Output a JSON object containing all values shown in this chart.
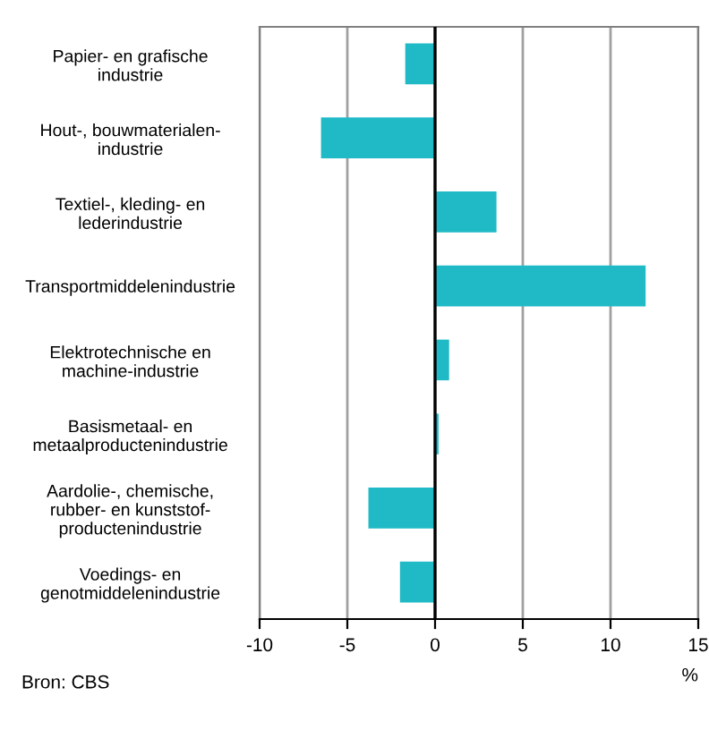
{
  "chart_data": {
    "type": "bar",
    "orientation": "horizontal",
    "categories": [
      "Papier- en grafische\nindustrie",
      "Hout-, bouwmaterialen-\nindustrie",
      "Textiel-, kleding- en\nlederindustrie",
      "Transportmiddelenindustrie",
      "Elektrotechnische en\nmachine-industrie",
      "Basismetaal- en\nmetaalproductenindustrie",
      "Aardolie-, chemische,\nrubber- en kunststof-\nproductenindustrie",
      "Voedings- en\ngenotmiddelenindustrie"
    ],
    "values": [
      -1.7,
      -6.5,
      3.5,
      12.0,
      0.8,
      0.2,
      -3.8,
      -2.0
    ],
    "color": "#1fbac6",
    "xlim": [
      -10,
      15
    ],
    "xticks": [
      -10,
      -5,
      0,
      5,
      10,
      15
    ],
    "xlabel": "%",
    "grid": "x",
    "ref_lines": [
      {
        "axis": "x",
        "value": 0,
        "color": "#000000"
      }
    ],
    "annotations": [
      "Bron: CBS"
    ]
  }
}
